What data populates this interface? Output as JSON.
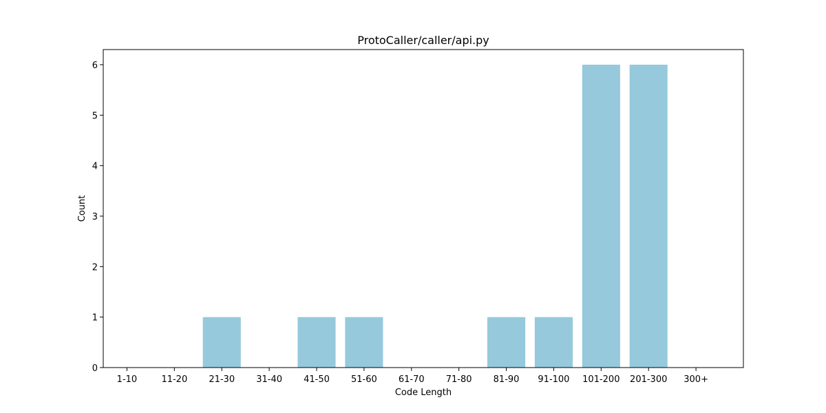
{
  "chart_data": {
    "type": "bar",
    "title": "ProtoCaller/caller/api.py",
    "xlabel": "Code Length",
    "ylabel": "Count",
    "categories": [
      "1-10",
      "11-20",
      "21-30",
      "31-40",
      "41-50",
      "51-60",
      "61-70",
      "71-80",
      "81-90",
      "91-100",
      "101-200",
      "201-300",
      "300+"
    ],
    "values": [
      0,
      0,
      1,
      0,
      1,
      1,
      0,
      0,
      1,
      1,
      6,
      6,
      0
    ],
    "ylim": [
      0,
      6.3
    ],
    "yticks": [
      0,
      1,
      2,
      3,
      4,
      5,
      6
    ],
    "grid": false,
    "legend": "none",
    "bar_color": "#96c9dc"
  }
}
